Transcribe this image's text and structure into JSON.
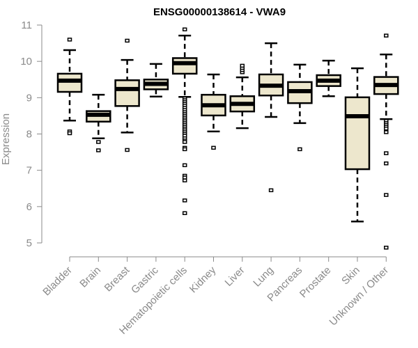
{
  "chart_data": {
    "type": "boxplot",
    "title": "ENSG00000138614 - VWA9",
    "xlabel": "",
    "ylabel": "Expression",
    "ylim": [
      5,
      11
    ],
    "yticks": [
      5,
      6,
      7,
      8,
      9,
      10,
      11
    ],
    "grid": false,
    "legend": "none",
    "box_fill": "#ede7cd",
    "box_stroke": "#000000",
    "categories": [
      "Bladder",
      "Brain",
      "Breast",
      "Gastric",
      "Hematopoietic cells",
      "Kidney",
      "Liver",
      "Lung",
      "Pancreas",
      "Prostate",
      "Skin",
      "Unknown / Other"
    ],
    "series": [
      {
        "name": "Bladder",
        "whisker_low": 8.37,
        "q1": 9.16,
        "median": 9.47,
        "q3": 9.66,
        "whisker_high": 10.31,
        "outliers": [
          10.6,
          8.07,
          8.02
        ]
      },
      {
        "name": "Brain",
        "whisker_low": 7.88,
        "q1": 8.34,
        "median": 8.53,
        "q3": 8.63,
        "whisker_high": 9.08,
        "outliers": [
          7.78,
          7.55
        ]
      },
      {
        "name": "Breast",
        "whisker_low": 8.04,
        "q1": 8.77,
        "median": 9.24,
        "q3": 9.48,
        "whisker_high": 10.04,
        "outliers": [
          10.57,
          7.56
        ]
      },
      {
        "name": "Gastric",
        "whisker_low": 9.03,
        "q1": 9.23,
        "median": 9.38,
        "q3": 9.5,
        "whisker_high": 9.93,
        "outliers": []
      },
      {
        "name": "Hematopoietic cells",
        "whisker_low": 9.02,
        "q1": 9.66,
        "median": 9.95,
        "q3": 10.09,
        "whisker_high": 10.71,
        "outliers": [
          10.88,
          8.98,
          8.93,
          8.88,
          8.83,
          8.78,
          8.72,
          8.66,
          8.6,
          8.55,
          8.5,
          8.45,
          8.4,
          8.35,
          8.3,
          8.25,
          8.2,
          8.15,
          8.1,
          8.05,
          8.0,
          7.95,
          7.88,
          7.82,
          7.78,
          7.62,
          7.58,
          7.14,
          6.85,
          6.8,
          6.72,
          6.17,
          5.82
        ]
      },
      {
        "name": "Kidney",
        "whisker_low": 8.07,
        "q1": 8.51,
        "median": 8.79,
        "q3": 9.08,
        "whisker_high": 9.64,
        "outliers": [
          7.62
        ]
      },
      {
        "name": "Liver",
        "whisker_low": 8.16,
        "q1": 8.62,
        "median": 8.83,
        "q3": 9.04,
        "whisker_high": 9.56,
        "outliers": [
          9.7,
          9.76,
          9.82,
          9.88
        ]
      },
      {
        "name": "Lung",
        "whisker_low": 8.47,
        "q1": 9.06,
        "median": 9.33,
        "q3": 9.64,
        "whisker_high": 10.5,
        "outliers": [
          6.45
        ]
      },
      {
        "name": "Pancreas",
        "whisker_low": 8.3,
        "q1": 8.85,
        "median": 9.18,
        "q3": 9.43,
        "whisker_high": 9.91,
        "outliers": [
          7.58
        ]
      },
      {
        "name": "Prostate",
        "whisker_low": 9.04,
        "q1": 9.32,
        "median": 9.47,
        "q3": 9.62,
        "whisker_high": 10.02,
        "outliers": []
      },
      {
        "name": "Skin",
        "whisker_low": 5.59,
        "q1": 7.03,
        "median": 8.49,
        "q3": 9.01,
        "whisker_high": 9.81,
        "outliers": []
      },
      {
        "name": "Unknown / Other",
        "whisker_low": 8.41,
        "q1": 9.1,
        "median": 9.35,
        "q3": 9.57,
        "whisker_high": 10.19,
        "outliers": [
          10.71,
          8.36,
          8.3,
          8.25,
          8.2,
          8.15,
          8.05,
          7.47,
          7.19,
          6.32,
          4.87
        ]
      }
    ]
  }
}
